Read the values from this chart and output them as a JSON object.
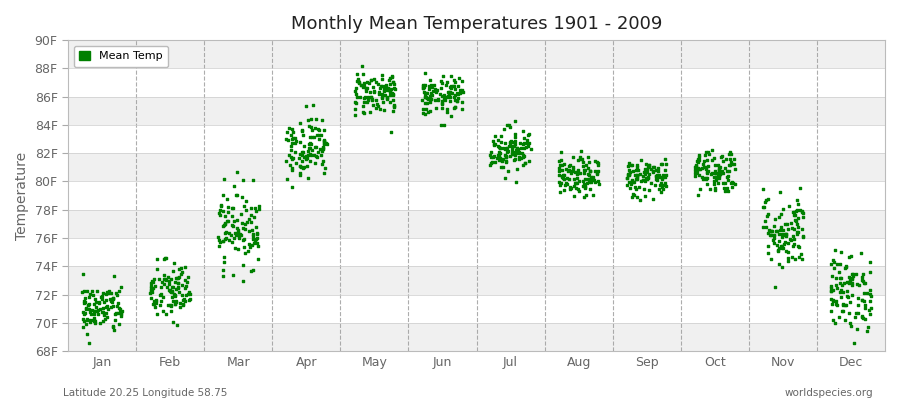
{
  "title": "Monthly Mean Temperatures 1901 - 2009",
  "ylabel": "Temperature",
  "xlabel_bottom_left": "Latitude 20.25 Longitude 58.75",
  "xlabel_bottom_right": "worldspecies.org",
  "ylim": [
    68,
    90
  ],
  "yticks": [
    68,
    70,
    72,
    74,
    76,
    78,
    80,
    82,
    84,
    86,
    88,
    90
  ],
  "ytick_labels": [
    "68F",
    "70F",
    "72F",
    "74F",
    "76F",
    "78F",
    "80F",
    "82F",
    "84F",
    "86F",
    "88F",
    "90F"
  ],
  "months": [
    "Jan",
    "Feb",
    "Mar",
    "Apr",
    "May",
    "Jun",
    "Jul",
    "Aug",
    "Sep",
    "Oct",
    "Nov",
    "Dec"
  ],
  "dot_color": "#008000",
  "background_color": "#ffffff",
  "plot_bg_color": "#ffffff",
  "legend_label": "Mean Temp",
  "n_years": 109,
  "monthly_mean_temps_F": [
    71.0,
    72.2,
    76.8,
    82.5,
    86.3,
    86.0,
    82.3,
    80.3,
    80.3,
    80.8,
    76.5,
    72.2
  ],
  "monthly_std_temps_F": [
    0.9,
    1.1,
    1.4,
    1.1,
    0.8,
    0.7,
    0.8,
    0.7,
    0.7,
    0.8,
    1.4,
    1.4
  ],
  "seed": 42,
  "band_colors": [
    "#f0f0f0",
    "#ffffff"
  ],
  "grid_color": "#cccccc",
  "dashed_line_color": "#999999",
  "title_color": "#222222",
  "tick_color": "#666666"
}
